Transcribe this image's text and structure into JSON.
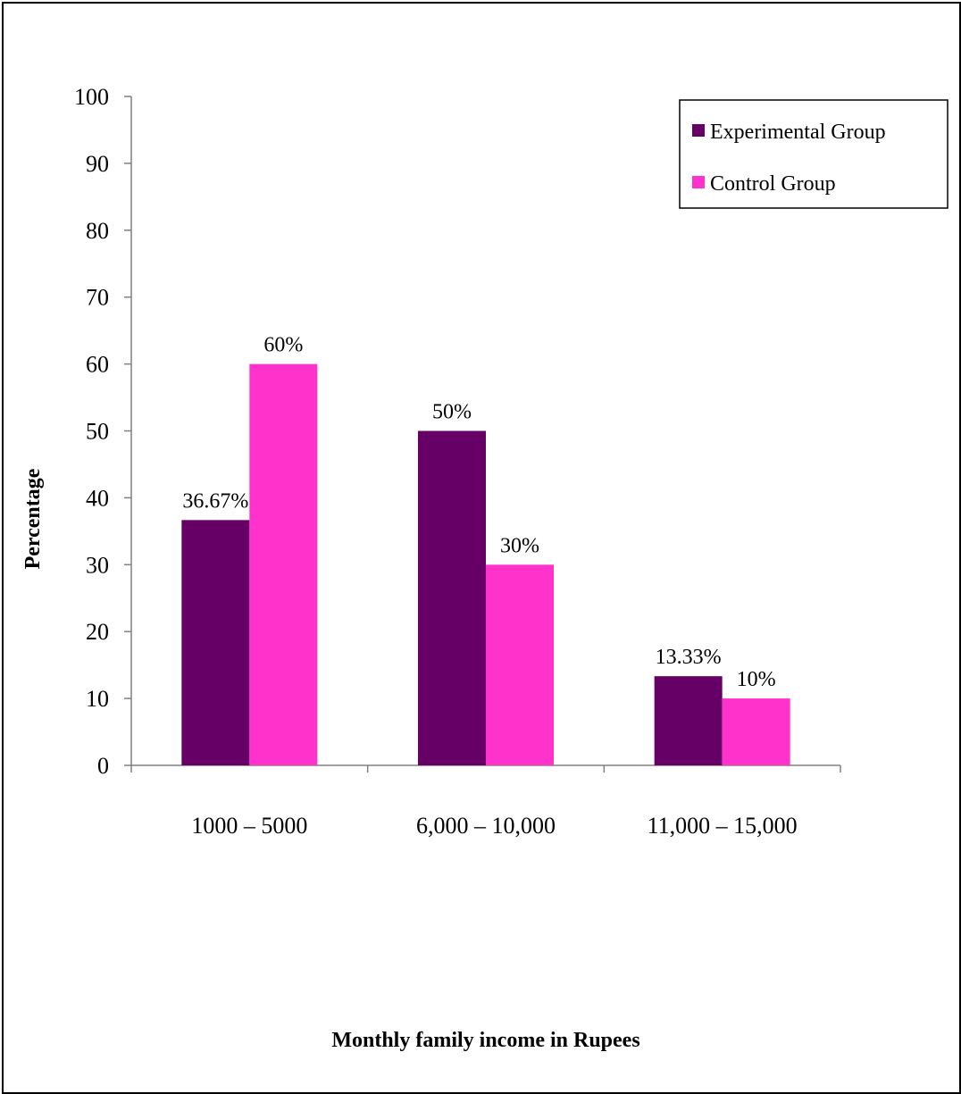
{
  "chart_data": {
    "type": "bar",
    "title": "",
    "xlabel": "Monthly family income in Rupees",
    "ylabel": "Percentage",
    "categories": [
      "1000 – 5000",
      "6,000 – 10,000",
      "11,000 – 15,000"
    ],
    "series": [
      {
        "name": "Experimental Group",
        "color": "#660066",
        "values": [
          36.67,
          50,
          13.33
        ],
        "labels": [
          "36.67%",
          "50%",
          "13.33%"
        ]
      },
      {
        "name": "Control Group",
        "color": "#ff33cc",
        "values": [
          60,
          30,
          10
        ],
        "labels": [
          "60%",
          "30%",
          "10%"
        ]
      }
    ],
    "ylim": [
      0,
      100
    ],
    "yticks": [
      "0",
      "10",
      "20",
      "30",
      "40",
      "50",
      "60",
      "70",
      "80",
      "90",
      "100"
    ],
    "grid": false,
    "legend_position": "top-right"
  }
}
